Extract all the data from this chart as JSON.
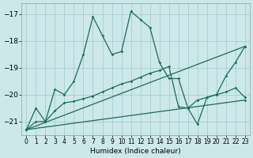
{
  "xlabel": "Humidex (Indice chaleur)",
  "background_color": "#cce8ea",
  "grid_color": "#aacdd0",
  "line_color": "#1a6b5a",
  "xlim": [
    -0.5,
    23.5
  ],
  "ylim": [
    -21.5,
    -16.6
  ],
  "xticks": [
    0,
    1,
    2,
    3,
    4,
    5,
    6,
    7,
    8,
    9,
    10,
    11,
    12,
    13,
    14,
    15,
    16,
    17,
    18,
    19,
    20,
    21,
    22,
    23
  ],
  "yticks": [
    -21,
    -20,
    -19,
    -18,
    -17
  ],
  "series1_x": [
    0,
    1,
    2,
    3,
    4,
    5,
    6,
    7,
    8,
    9,
    10,
    11,
    12,
    13,
    14,
    15,
    16,
    17,
    18,
    19,
    20,
    21,
    22,
    23
  ],
  "series1_y": [
    -21.3,
    -20.5,
    -21.0,
    -19.8,
    -20.0,
    -19.5,
    -18.5,
    -17.1,
    -17.8,
    -18.5,
    -18.4,
    -16.9,
    -17.2,
    -17.5,
    -18.8,
    -19.4,
    -19.4,
    -20.5,
    -21.1,
    -20.1,
    -20.0,
    -19.3,
    -18.8,
    -18.2
  ],
  "series2_x": [
    0,
    1,
    2,
    3,
    4,
    5,
    6,
    7,
    8,
    9,
    10,
    11,
    12,
    13,
    14,
    15,
    16,
    17,
    18,
    19,
    20,
    21,
    22,
    23
  ],
  "series2_y": [
    -21.3,
    -21.0,
    -21.0,
    -20.6,
    -20.3,
    -20.25,
    -20.15,
    -20.05,
    -19.9,
    -19.75,
    -19.6,
    -19.5,
    -19.35,
    -19.2,
    -19.1,
    -18.95,
    -20.45,
    -20.5,
    -20.2,
    -20.1,
    -20.0,
    -19.9,
    -19.75,
    -20.1
  ],
  "trend1_x": [
    0,
    23
  ],
  "trend1_y": [
    -21.3,
    -18.2
  ],
  "trend2_x": [
    0,
    23
  ],
  "trend2_y": [
    -21.3,
    -20.2
  ]
}
